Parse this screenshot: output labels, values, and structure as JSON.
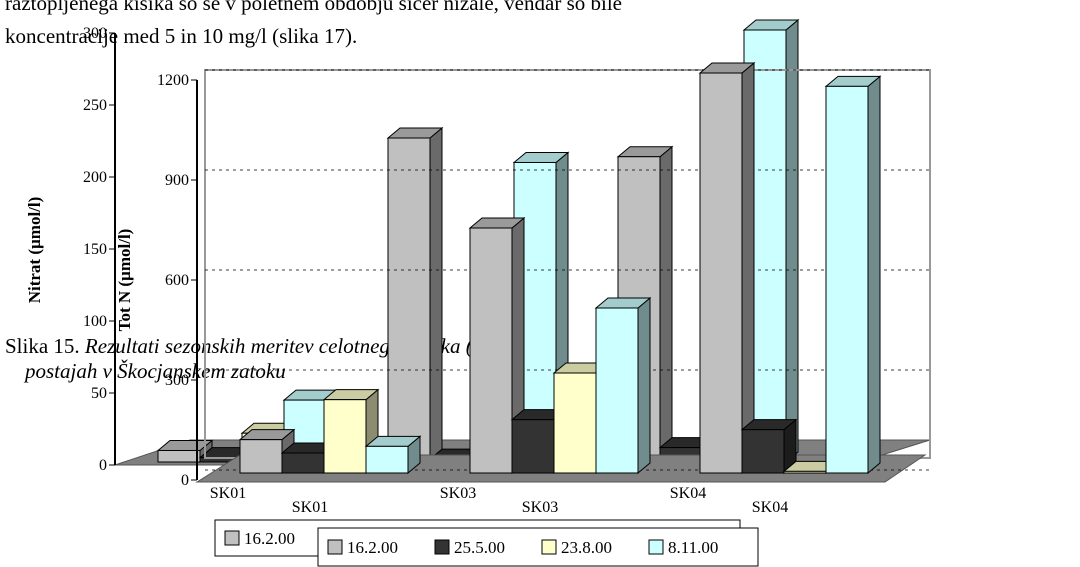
{
  "document": {
    "text_lines": [
      "raztopljenega kisika so se v poletnem obdobju sicer nižale, vendar so bile",
      "koncentracije med 5 in 10 mg/l (slika 17)."
    ],
    "caption": {
      "label": "Slika 15.",
      "text_1": "Rezultati sezonskih meritev celotnega dušika (Tot N) na",
      "text_2": "postajah v Škocjanskem zatoku"
    }
  },
  "chart_data": [
    {
      "type": "bar3d",
      "y_label": "Nitrat (µmol/l)",
      "categories": [
        "SK01",
        "SK03",
        "SK04"
      ],
      "series": [
        {
          "name": "16.2.00",
          "color": "#c0c0c0",
          "values": [
            8,
            225,
            212
          ]
        },
        {
          "name": "25.5.00",
          "color": "#333333",
          "values": [
            3,
            2,
            10
          ]
        },
        {
          "name": "23.8.00",
          "color": "#ffffcc",
          "values": [
            20,
            30,
            5
          ]
        },
        {
          "name": "8.11.00",
          "color": "#ccffff",
          "values": [
            43,
            208,
            300
          ]
        }
      ],
      "ylim": [
        0,
        300
      ],
      "yticks": [
        0,
        50,
        100,
        150,
        200,
        250,
        300
      ]
    },
    {
      "type": "bar3d",
      "y_label": "Tot N (µmol/l)",
      "categories": [
        "SK01",
        "SK03",
        "SK04"
      ],
      "series": [
        {
          "name": "16.2.00",
          "color": "#c0c0c0",
          "values": [
            100,
            735,
            1200
          ]
        },
        {
          "name": "25.5.00",
          "color": "#333333",
          "values": [
            60,
            160,
            130
          ]
        },
        {
          "name": "23.8.00",
          "color": "#ffffcc",
          "values": [
            220,
            300,
            5
          ]
        },
        {
          "name": "8.11.00",
          "color": "#ccffff",
          "values": [
            80,
            495,
            1160
          ]
        }
      ],
      "ylim": [
        0,
        1200
      ],
      "yticks": [
        0,
        300,
        600,
        900,
        1200
      ],
      "grid": true
    }
  ]
}
